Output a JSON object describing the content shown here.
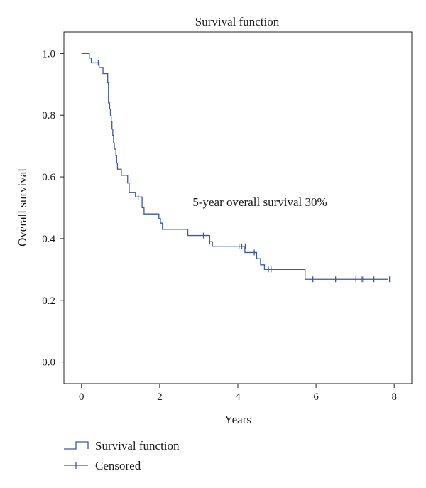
{
  "chart_data": {
    "type": "line",
    "title": "Survival function",
    "xlabel": "Years",
    "ylabel": "Overall survival",
    "xlim": [
      -0.45,
      8.45
    ],
    "ylim": [
      -0.07,
      1.07
    ],
    "xticks": [
      0,
      2,
      4,
      6,
      8
    ],
    "yticks": [
      0.0,
      0.2,
      0.4,
      0.6,
      0.8,
      1.0
    ],
    "ytick_labels": [
      "0.0",
      "0.2",
      "0.4",
      "0.6",
      "0.8",
      "1.0"
    ],
    "grid": false,
    "legend_position": "bottom-left",
    "annotation": "5-year overall survival 30%",
    "series": [
      {
        "name": "Survival function",
        "kind": "step",
        "color": "#3a58a4",
        "points": [
          [
            0.0,
            1.0
          ],
          [
            0.2,
            0.985
          ],
          [
            0.25,
            0.97
          ],
          [
            0.45,
            0.955
          ],
          [
            0.55,
            0.935
          ],
          [
            0.67,
            0.905
          ],
          [
            0.69,
            0.84
          ],
          [
            0.72,
            0.82
          ],
          [
            0.74,
            0.8
          ],
          [
            0.76,
            0.78
          ],
          [
            0.78,
            0.755
          ],
          [
            0.8,
            0.735
          ],
          [
            0.82,
            0.71
          ],
          [
            0.84,
            0.69
          ],
          [
            0.88,
            0.67
          ],
          [
            0.9,
            0.645
          ],
          [
            0.92,
            0.625
          ],
          [
            1.02,
            0.605
          ],
          [
            1.18,
            0.58
          ],
          [
            1.22,
            0.55
          ],
          [
            1.38,
            0.535
          ],
          [
            1.55,
            0.5
          ],
          [
            1.6,
            0.48
          ],
          [
            1.98,
            0.465
          ],
          [
            2.02,
            0.45
          ],
          [
            2.07,
            0.43
          ],
          [
            2.72,
            0.41
          ],
          [
            3.28,
            0.39
          ],
          [
            3.35,
            0.375
          ],
          [
            4.18,
            0.355
          ],
          [
            4.48,
            0.335
          ],
          [
            4.58,
            0.315
          ],
          [
            4.68,
            0.3
          ],
          [
            5.72,
            0.268
          ],
          [
            7.85,
            0.268
          ]
        ]
      },
      {
        "name": "Censored",
        "kind": "censor-marks",
        "color": "#3a58a4",
        "points": [
          [
            0.43,
            0.97
          ],
          [
            1.45,
            0.535
          ],
          [
            3.12,
            0.41
          ],
          [
            3.28,
            0.39
          ],
          [
            4.03,
            0.375
          ],
          [
            4.1,
            0.375
          ],
          [
            4.19,
            0.375
          ],
          [
            4.42,
            0.355
          ],
          [
            4.78,
            0.3
          ],
          [
            4.85,
            0.3
          ],
          [
            5.92,
            0.268
          ],
          [
            6.5,
            0.268
          ],
          [
            7.02,
            0.268
          ],
          [
            7.18,
            0.268
          ],
          [
            7.22,
            0.268
          ],
          [
            7.48,
            0.268
          ],
          [
            7.88,
            0.268
          ]
        ]
      }
    ],
    "legend": [
      {
        "label": "Survival function",
        "marker": "step"
      },
      {
        "label": "Censored",
        "marker": "censor"
      }
    ]
  }
}
